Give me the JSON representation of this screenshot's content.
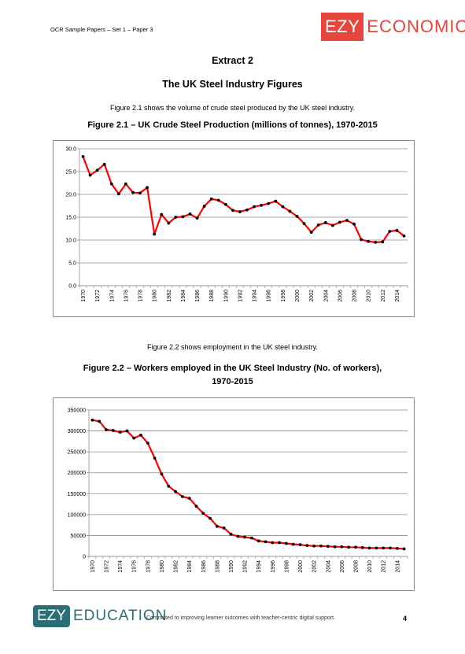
{
  "header": {
    "doc_label": "OCR Sample Papers – Set 1 – Paper 3",
    "logo_box": "EZY",
    "logo_text": "ECONOMICS"
  },
  "extract_label": "Extract 2",
  "main_title": "The UK Steel Industry Figures",
  "intro_1": "Figure 2.1 shows the volume of crude steel produced by the UK steel industry.",
  "figure_1_title": "Figure 2.1 – UK Crude Steel Production (millions of tonnes), 1970-2015",
  "intro_2": "Figure 2.2 shows employment in the UK steel industry.",
  "figure_2_title_line1": "Figure 2.2 – Workers employed in the UK Steel Industry (No. of workers),",
  "figure_2_title_line2": "1970-2015",
  "footer": {
    "logo_box": "EZY",
    "logo_text": "EDUCATION",
    "tagline": "Committed to improving learner outcomes with teacher-centric digital support.",
    "page_number": "4"
  },
  "colors": {
    "line": "#ff0000",
    "marker": "#000000",
    "grid": "#8c8c8c",
    "accent_red": "#e8453c",
    "accent_teal": "#2b6e75"
  },
  "chart_data": [
    {
      "type": "line",
      "title": "Figure 2.1 – UK Crude Steel Production (millions of tonnes), 1970-2015",
      "x": [
        1970,
        1971,
        1972,
        1973,
        1974,
        1975,
        1976,
        1977,
        1978,
        1979,
        1980,
        1981,
        1982,
        1983,
        1984,
        1985,
        1986,
        1987,
        1988,
        1989,
        1990,
        1991,
        1992,
        1993,
        1994,
        1995,
        1996,
        1997,
        1998,
        1999,
        2000,
        2001,
        2002,
        2003,
        2004,
        2005,
        2006,
        2007,
        2008,
        2009,
        2010,
        2011,
        2012,
        2013,
        2014,
        2015
      ],
      "x_tick_labels": [
        "1970",
        "1972",
        "1974",
        "1976",
        "1978",
        "1980",
        "1982",
        "1984",
        "1986",
        "1988",
        "1990",
        "1992",
        "1994",
        "1996",
        "1998",
        "2000",
        "2002",
        "2004",
        "2006",
        "2008",
        "2010",
        "2012",
        "2014"
      ],
      "series": [
        {
          "values": [
            28.3,
            24.2,
            25.3,
            26.6,
            22.3,
            20.1,
            22.3,
            20.4,
            20.3,
            21.5,
            11.3,
            15.6,
            13.7,
            15.0,
            15.1,
            15.7,
            14.8,
            17.4,
            19.0,
            18.7,
            17.8,
            16.5,
            16.2,
            16.6,
            17.3,
            17.6,
            18.0,
            18.5,
            17.3,
            16.3,
            15.2,
            13.6,
            11.7,
            13.3,
            13.8,
            13.2,
            13.9,
            14.3,
            13.5,
            10.1,
            9.7,
            9.5,
            9.6,
            11.9,
            12.1,
            10.9
          ]
        }
      ],
      "y_tick_labels": [
        "0.0",
        "5.0",
        "10.0",
        "15.0",
        "20.0",
        "25.0",
        "30.0"
      ],
      "ylim": [
        0,
        30
      ],
      "grid": true,
      "legend": "none"
    },
    {
      "type": "line",
      "title": "Figure 2.2 – Workers employed in the UK Steel Industry (No. of workers), 1970-2015",
      "x": [
        1970,
        1971,
        1972,
        1973,
        1974,
        1975,
        1976,
        1977,
        1978,
        1979,
        1980,
        1981,
        1982,
        1983,
        1984,
        1985,
        1986,
        1987,
        1988,
        1989,
        1990,
        1991,
        1992,
        1993,
        1994,
        1995,
        1996,
        1997,
        1998,
        1999,
        2000,
        2001,
        2002,
        2003,
        2004,
        2005,
        2006,
        2007,
        2008,
        2009,
        2010,
        2011,
        2012,
        2013,
        2014,
        2015
      ],
      "x_tick_labels": [
        "1970",
        "1972",
        "1974",
        "1976",
        "1978",
        "1980",
        "1982",
        "1984",
        "1986",
        "1988",
        "1990",
        "1992",
        "1994",
        "1996",
        "1998",
        "2000",
        "2002",
        "2004",
        "2006",
        "2008",
        "2010",
        "2012",
        "2014"
      ],
      "series": [
        {
          "values": [
            326000,
            323000,
            303000,
            301000,
            297000,
            300000,
            283000,
            290000,
            271000,
            235000,
            197000,
            168000,
            155000,
            143000,
            139000,
            120000,
            103000,
            91000,
            72000,
            68000,
            53000,
            48000,
            46000,
            44000,
            37000,
            35000,
            33000,
            33000,
            31000,
            29000,
            28000,
            26000,
            25000,
            25000,
            24000,
            23000,
            23000,
            22000,
            22000,
            21000,
            20000,
            20000,
            20000,
            20000,
            19000,
            18000
          ]
        }
      ],
      "y_tick_labels": [
        "0",
        "50000",
        "100000",
        "150000",
        "200000",
        "250000",
        "300000",
        "350000"
      ],
      "ylim": [
        0,
        350000
      ],
      "grid": true,
      "legend": "none"
    }
  ]
}
